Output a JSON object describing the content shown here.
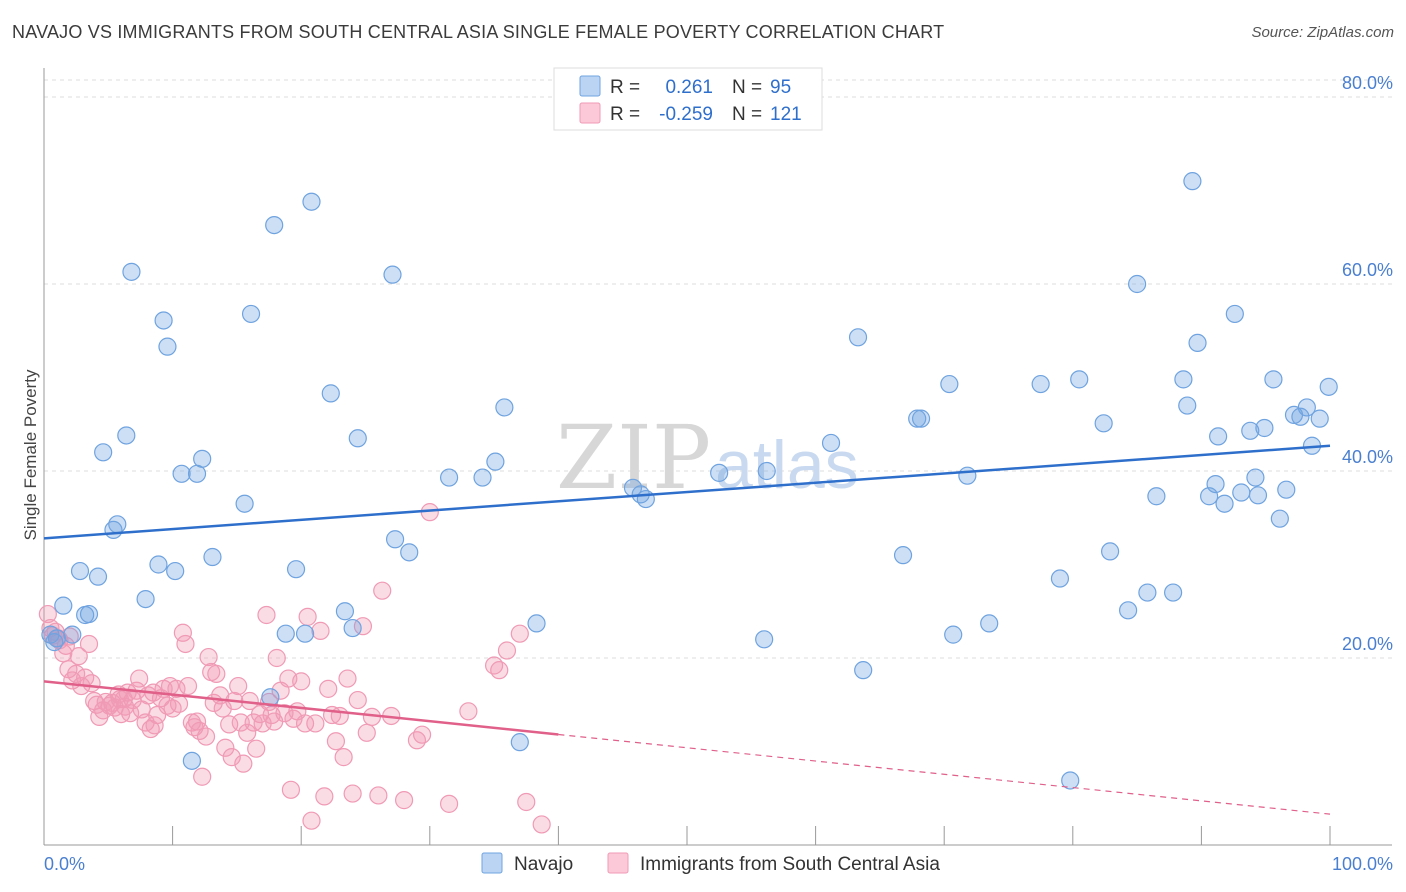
{
  "title": "NAVAJO VS IMMIGRANTS FROM SOUTH CENTRAL ASIA SINGLE FEMALE POVERTY CORRELATION CHART",
  "source": "Source: ZipAtlas.com",
  "watermark": {
    "zip": "ZIP",
    "atlas": "atlas"
  },
  "colors": {
    "navajo": "#6fa3e0",
    "navajo_line": "#2f6fcc",
    "immigrants": "#f09ab5",
    "immigrants_line": "#e0608a",
    "axis_text": "#4a7fd0",
    "grid": "#dddddd"
  },
  "legend": {
    "rows": [
      {
        "r_label": "R =",
        "r_value": "0.261",
        "n_label": "N =",
        "n_value": "95"
      },
      {
        "r_label": "R =",
        "r_value": "-0.259",
        "n_label": "N =",
        "n_value": "121"
      }
    ]
  },
  "chart_data": {
    "type": "scatter",
    "title": "NAVAJO VS IMMIGRANTS FROM SOUTH CENTRAL ASIA SINGLE FEMALE POVERTY CORRELATION CHART",
    "xlabel": "",
    "ylabel": "Single Female Poverty",
    "xlim": [
      0,
      100
    ],
    "ylim": [
      0,
      80
    ],
    "x_tick_labels": [
      "0.0%",
      "100.0%"
    ],
    "y_ticks": [
      20,
      40,
      60,
      80
    ],
    "y_tick_labels": [
      "20.0%",
      "40.0%",
      "60.0%",
      "80.0%"
    ],
    "grid": true,
    "legend_position": "top-center",
    "series": [
      {
        "name": "Navajo",
        "r": 0.261,
        "n": 95,
        "trend": {
          "x": [
            0,
            100
          ],
          "y": [
            32.8,
            42.7
          ],
          "dashed_from": null
        },
        "points": [
          [
            0.5,
            22.5
          ],
          [
            0.8,
            21.7
          ],
          [
            1.0,
            22.1
          ],
          [
            1.5,
            25.6
          ],
          [
            2.2,
            22.5
          ],
          [
            2.8,
            29.3
          ],
          [
            3.2,
            24.6
          ],
          [
            3.5,
            24.7
          ],
          [
            4.2,
            28.7
          ],
          [
            4.6,
            42.0
          ],
          [
            5.4,
            33.7
          ],
          [
            5.7,
            34.3
          ],
          [
            6.4,
            43.8
          ],
          [
            6.8,
            61.3
          ],
          [
            7.9,
            26.3
          ],
          [
            8.9,
            30.0
          ],
          [
            9.3,
            56.1
          ],
          [
            9.6,
            53.3
          ],
          [
            10.2,
            29.3
          ],
          [
            10.7,
            39.7
          ],
          [
            11.5,
            9.0
          ],
          [
            11.9,
            39.7
          ],
          [
            12.3,
            41.3
          ],
          [
            13.1,
            30.8
          ],
          [
            15.6,
            36.5
          ],
          [
            16.1,
            56.8
          ],
          [
            17.6,
            15.8
          ],
          [
            17.9,
            66.3
          ],
          [
            18.8,
            22.6
          ],
          [
            19.6,
            29.5
          ],
          [
            20.3,
            22.6
          ],
          [
            20.8,
            68.8
          ],
          [
            22.3,
            48.3
          ],
          [
            23.4,
            25.0
          ],
          [
            24.0,
            23.2
          ],
          [
            24.4,
            43.5
          ],
          [
            27.1,
            61.0
          ],
          [
            27.3,
            32.7
          ],
          [
            28.4,
            31.3
          ],
          [
            31.5,
            39.3
          ],
          [
            34.1,
            39.3
          ],
          [
            35.1,
            41.0
          ],
          [
            35.8,
            46.8
          ],
          [
            37.0,
            11.0
          ],
          [
            38.3,
            23.7
          ],
          [
            45.8,
            38.2
          ],
          [
            46.4,
            37.5
          ],
          [
            46.8,
            37.0
          ],
          [
            52.5,
            39.8
          ],
          [
            56.0,
            22.0
          ],
          [
            61.2,
            43.0
          ],
          [
            63.3,
            54.3
          ],
          [
            63.7,
            18.7
          ],
          [
            66.8,
            31.0
          ],
          [
            67.9,
            45.6
          ],
          [
            68.2,
            45.6
          ],
          [
            70.4,
            49.3
          ],
          [
            70.7,
            22.5
          ],
          [
            71.8,
            39.5
          ],
          [
            73.5,
            23.7
          ],
          [
            77.5,
            49.3
          ],
          [
            79.0,
            28.5
          ],
          [
            79.8,
            6.9
          ],
          [
            80.5,
            49.8
          ],
          [
            82.4,
            45.1
          ],
          [
            82.9,
            31.4
          ],
          [
            84.3,
            25.1
          ],
          [
            85.0,
            60.0
          ],
          [
            85.8,
            27.0
          ],
          [
            86.5,
            37.3
          ],
          [
            87.8,
            27.0
          ],
          [
            88.6,
            49.8
          ],
          [
            88.9,
            47.0
          ],
          [
            89.3,
            71.0
          ],
          [
            89.7,
            53.7
          ],
          [
            90.6,
            37.3
          ],
          [
            91.1,
            38.6
          ],
          [
            91.3,
            43.7
          ],
          [
            91.8,
            36.5
          ],
          [
            92.6,
            56.8
          ],
          [
            93.1,
            37.7
          ],
          [
            93.8,
            44.3
          ],
          [
            94.2,
            39.3
          ],
          [
            94.4,
            37.4
          ],
          [
            94.9,
            44.6
          ],
          [
            95.6,
            49.8
          ],
          [
            96.1,
            34.9
          ],
          [
            96.6,
            38.0
          ],
          [
            97.2,
            46.0
          ],
          [
            97.7,
            45.8
          ],
          [
            98.2,
            46.8
          ],
          [
            98.6,
            42.7
          ],
          [
            99.2,
            45.6
          ],
          [
            99.9,
            49.0
          ],
          [
            56.2,
            40.0
          ]
        ]
      },
      {
        "name": "Immigrants from South Central Asia",
        "r": -0.259,
        "n": 121,
        "trend": {
          "x": [
            0,
            100
          ],
          "y": [
            17.5,
            3.3
          ],
          "dashed_from": 40
        },
        "points": [
          [
            0.3,
            24.7
          ],
          [
            0.5,
            23.2
          ],
          [
            0.7,
            22.4
          ],
          [
            0.9,
            22.8
          ],
          [
            1.2,
            21.9
          ],
          [
            1.5,
            20.5
          ],
          [
            1.7,
            21.3
          ],
          [
            1.9,
            18.8
          ],
          [
            2.2,
            17.6
          ],
          [
            2.5,
            18.3
          ],
          [
            2.7,
            20.2
          ],
          [
            2.9,
            17.0
          ],
          [
            3.2,
            17.9
          ],
          [
            3.5,
            21.5
          ],
          [
            3.7,
            17.3
          ],
          [
            3.9,
            15.4
          ],
          [
            4.1,
            15.0
          ],
          [
            4.3,
            13.7
          ],
          [
            4.6,
            14.4
          ],
          [
            4.8,
            15.3
          ],
          [
            5.1,
            14.9
          ],
          [
            5.3,
            15.2
          ],
          [
            5.5,
            14.7
          ],
          [
            5.8,
            16.1
          ],
          [
            6.0,
            14.0
          ],
          [
            6.2,
            15.6
          ],
          [
            6.5,
            16.3
          ],
          [
            6.7,
            14.1
          ],
          [
            6.9,
            15.5
          ],
          [
            7.2,
            16.5
          ],
          [
            7.4,
            17.8
          ],
          [
            7.6,
            14.5
          ],
          [
            7.9,
            13.1
          ],
          [
            8.1,
            16.0
          ],
          [
            8.3,
            12.4
          ],
          [
            8.6,
            12.8
          ],
          [
            8.8,
            13.9
          ],
          [
            9.1,
            15.7
          ],
          [
            9.3,
            16.7
          ],
          [
            9.6,
            14.9
          ],
          [
            9.8,
            17.0
          ],
          [
            10.0,
            14.6
          ],
          [
            10.3,
            16.7
          ],
          [
            10.5,
            15.1
          ],
          [
            10.8,
            22.7
          ],
          [
            11.0,
            21.5
          ],
          [
            11.2,
            17.0
          ],
          [
            11.5,
            13.1
          ],
          [
            11.7,
            12.6
          ],
          [
            11.9,
            13.2
          ],
          [
            12.1,
            12.2
          ],
          [
            12.3,
            7.3
          ],
          [
            12.6,
            11.6
          ],
          [
            12.8,
            20.1
          ],
          [
            13.0,
            18.5
          ],
          [
            13.2,
            15.2
          ],
          [
            13.4,
            18.3
          ],
          [
            13.7,
            16.0
          ],
          [
            13.9,
            14.6
          ],
          [
            14.1,
            10.4
          ],
          [
            14.4,
            12.9
          ],
          [
            14.6,
            9.4
          ],
          [
            14.8,
            15.4
          ],
          [
            15.1,
            17.0
          ],
          [
            15.3,
            13.1
          ],
          [
            15.5,
            8.7
          ],
          [
            15.8,
            12.0
          ],
          [
            16.0,
            15.4
          ],
          [
            16.3,
            13.1
          ],
          [
            16.5,
            10.3
          ],
          [
            16.8,
            14.0
          ],
          [
            17.0,
            13.0
          ],
          [
            17.3,
            24.6
          ],
          [
            17.5,
            15.3
          ],
          [
            17.7,
            13.9
          ],
          [
            17.9,
            13.2
          ],
          [
            18.1,
            20.0
          ],
          [
            18.4,
            16.5
          ],
          [
            18.7,
            14.1
          ],
          [
            19.0,
            17.8
          ],
          [
            19.2,
            5.9
          ],
          [
            19.4,
            13.5
          ],
          [
            19.7,
            14.3
          ],
          [
            20.0,
            17.5
          ],
          [
            20.3,
            13.0
          ],
          [
            20.5,
            24.4
          ],
          [
            20.8,
            2.6
          ],
          [
            21.1,
            13.0
          ],
          [
            21.5,
            22.9
          ],
          [
            21.8,
            5.2
          ],
          [
            22.1,
            16.7
          ],
          [
            22.4,
            13.9
          ],
          [
            22.7,
            11.1
          ],
          [
            23.0,
            13.8
          ],
          [
            23.3,
            9.4
          ],
          [
            23.6,
            17.8
          ],
          [
            24.0,
            5.5
          ],
          [
            24.4,
            15.5
          ],
          [
            24.8,
            23.4
          ],
          [
            25.1,
            12.0
          ],
          [
            25.5,
            13.7
          ],
          [
            26.0,
            5.3
          ],
          [
            26.3,
            27.2
          ],
          [
            27.0,
            13.8
          ],
          [
            28.0,
            4.8
          ],
          [
            29.0,
            11.2
          ],
          [
            29.4,
            11.8
          ],
          [
            30.0,
            35.6
          ],
          [
            31.5,
            4.4
          ],
          [
            33.0,
            14.3
          ],
          [
            35.0,
            19.2
          ],
          [
            35.4,
            18.7
          ],
          [
            36.0,
            20.8
          ],
          [
            37.0,
            22.6
          ],
          [
            37.5,
            4.6
          ],
          [
            38.7,
            2.2
          ],
          [
            1.1,
            22.1
          ],
          [
            2.0,
            22.3
          ],
          [
            5.9,
            15.6
          ],
          [
            8.5,
            16.3
          ],
          [
            6.3,
            14.8
          ]
        ]
      }
    ]
  }
}
